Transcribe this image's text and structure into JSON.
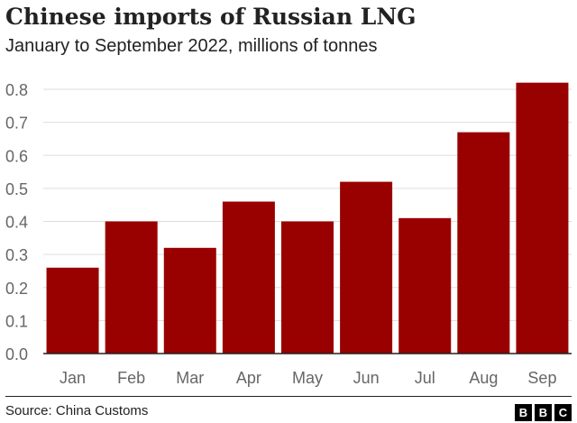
{
  "title": "Chinese imports of Russian LNG",
  "subtitle": "January to September 2022, millions of tonnes",
  "source": "Source: China Customs",
  "logo": [
    "B",
    "B",
    "C"
  ],
  "colors": {
    "bar": "#990000",
    "grid": "#dddddd",
    "baseline": "#222222",
    "text": "#222222",
    "tick_text": "#666666"
  },
  "chart_data": {
    "type": "bar",
    "title": "Chinese imports of Russian LNG",
    "subtitle": "January to September 2022, millions of tonnes",
    "categories": [
      "Jan",
      "Feb",
      "Mar",
      "Apr",
      "May",
      "Jun",
      "Jul",
      "Aug",
      "Sep"
    ],
    "values": [
      0.26,
      0.4,
      0.32,
      0.46,
      0.4,
      0.52,
      0.41,
      0.67,
      0.82
    ],
    "ylim": [
      0,
      0.8
    ],
    "yticks": [
      "0.0",
      "0.1",
      "0.2",
      "0.3",
      "0.4",
      "0.5",
      "0.6",
      "0.7",
      "0.8"
    ],
    "xlabel": "",
    "ylabel": "",
    "grid": true,
    "legend": "none"
  }
}
